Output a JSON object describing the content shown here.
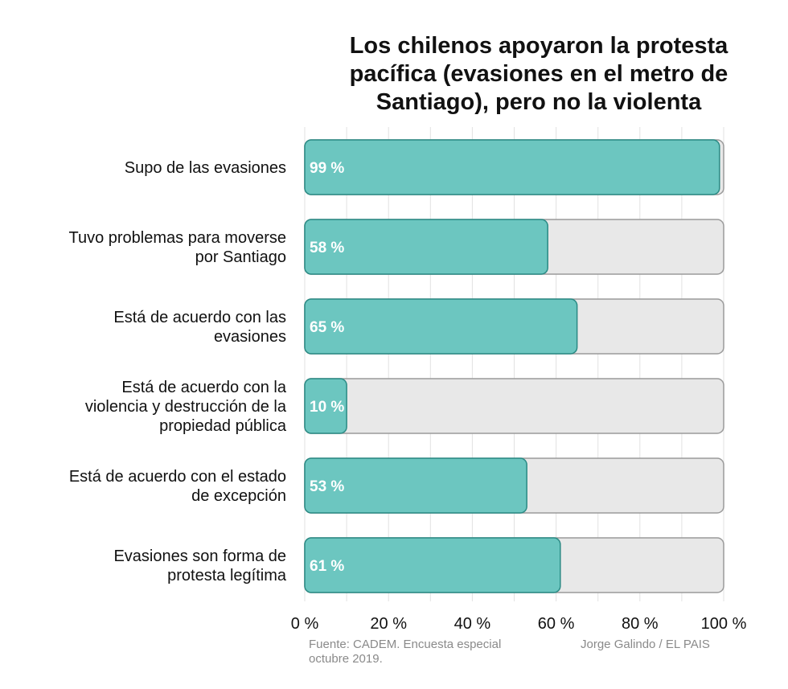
{
  "chart_data": {
    "type": "bar",
    "orientation": "horizontal",
    "title": "Los chilenos apoyaron la protesta pacífica (evasiones en el metro de Santiago), pero no la violenta",
    "title_lines": [
      "Los chilenos apoyaron la protesta",
      "pacífica (evasiones en el metro de",
      "Santiago), pero no la violenta"
    ],
    "categories": [
      "Supo de las evasiones",
      "Tuvo problemas para moverse por Santiago",
      "Está de acuerdo con las evasiones",
      "Está de acuerdo con la violencia y destrucción de la propiedad pública",
      "Está de acuerdo con el estado de excepción",
      "Evasiones son forma de protesta legítima"
    ],
    "category_lines": [
      [
        "Supo de las evasiones"
      ],
      [
        "Tuvo problemas para moverse",
        "por Santiago"
      ],
      [
        "Está de acuerdo con las",
        "evasiones"
      ],
      [
        "Está de acuerdo con la",
        "violencia y destrucción de la",
        "propiedad pública"
      ],
      [
        "Está de acuerdo con el estado",
        "de excepción"
      ],
      [
        "Evasiones son forma de",
        "protesta legítima"
      ]
    ],
    "values": [
      99,
      58,
      65,
      10,
      53,
      61
    ],
    "value_labels": [
      "99 %",
      "58 %",
      "65 %",
      "10 %",
      "53 %",
      "61 %"
    ],
    "xlim": [
      0,
      100
    ],
    "xticks": [
      0,
      20,
      40,
      60,
      80,
      100
    ],
    "xtick_labels": [
      "0 %",
      "20 %",
      "40 %",
      "60 %",
      "80 %",
      "100 %"
    ],
    "grid": true,
    "legend": "none",
    "colors": {
      "bar_fill": "#6cc6c0",
      "bar_stroke": "#2a8a84",
      "track_fill": "#e8e8e8",
      "track_stroke": "#9a9a9a",
      "grid": "#e2e2e2",
      "text": "#111111",
      "value_label": "#ffffff"
    }
  },
  "footer": {
    "source_lines": [
      "Fuente: CADEM. Encuesta especial",
      "octubre 2019."
    ],
    "author": "Jorge Galindo / EL PAIS"
  }
}
